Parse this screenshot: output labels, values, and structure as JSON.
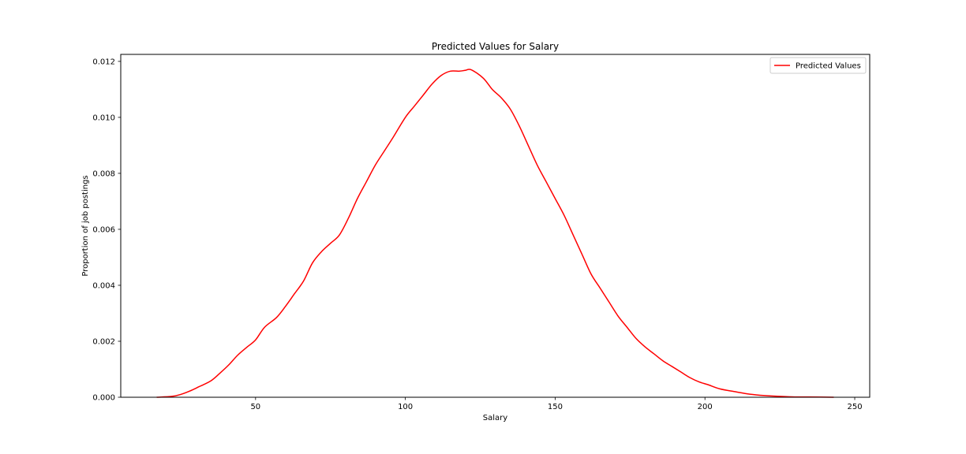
{
  "chart_data": {
    "type": "line",
    "title": "Predicted Values for Salary",
    "xlabel": "Salary",
    "ylabel": "Proportion of job postings",
    "xlim": [
      5,
      255
    ],
    "ylim": [
      0,
      0.01225
    ],
    "xticks": [
      50,
      100,
      150,
      200,
      250
    ],
    "xtick_labels": [
      "50",
      "100",
      "150",
      "200",
      "250"
    ],
    "yticks": [
      0,
      0.002,
      0.004,
      0.006,
      0.008,
      0.01,
      0.012
    ],
    "ytick_labels": [
      "0.000",
      "0.002",
      "0.004",
      "0.006",
      "0.008",
      "0.010",
      "0.012"
    ],
    "grid": false,
    "legend_position": "top-right",
    "series": [
      {
        "name": "Predicted Values",
        "color": "#ff0000",
        "x": [
          17,
          22,
          25,
          28,
          31,
          35,
          38,
          41,
          44,
          47,
          50,
          53,
          57,
          60,
          63,
          66,
          69,
          72,
          75,
          78,
          81,
          84,
          87,
          90,
          93,
          96,
          100,
          103,
          106,
          109,
          112,
          115,
          118,
          120,
          122,
          126,
          129,
          132,
          135,
          138,
          141,
          144,
          147,
          150,
          153,
          156,
          159,
          162,
          165,
          168,
          171,
          174,
          177,
          180,
          183,
          186,
          189,
          192,
          195,
          198,
          201,
          205,
          210,
          215,
          220,
          225,
          230,
          235,
          243
        ],
        "y": [
          0.0,
          3e-05,
          0.0001,
          0.00022,
          0.00037,
          0.00058,
          0.00085,
          0.00115,
          0.0015,
          0.00178,
          0.00205,
          0.0025,
          0.00285,
          0.00325,
          0.0037,
          0.00415,
          0.0048,
          0.0052,
          0.0055,
          0.0058,
          0.0064,
          0.0071,
          0.0077,
          0.0083,
          0.0088,
          0.0093,
          0.01,
          0.0104,
          0.0108,
          0.0112,
          0.0115,
          0.01165,
          0.01165,
          0.01168,
          0.0117,
          0.0114,
          0.011,
          0.0107,
          0.0103,
          0.0097,
          0.009,
          0.0083,
          0.0077,
          0.0071,
          0.0065,
          0.0058,
          0.0051,
          0.0044,
          0.0039,
          0.0034,
          0.0029,
          0.0025,
          0.0021,
          0.0018,
          0.00155,
          0.0013,
          0.0011,
          0.0009,
          0.0007,
          0.00055,
          0.00045,
          0.0003,
          0.0002,
          0.00011,
          6e-05,
          3e-05,
          1e-05,
          1e-05,
          0.0
        ]
      }
    ]
  }
}
